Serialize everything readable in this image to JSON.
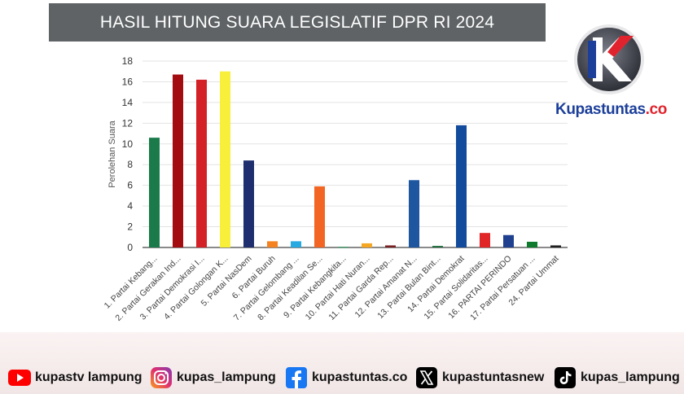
{
  "header": {
    "title": "HASIL HITUNG SUARA LEGISLATIF DPR RI 2024"
  },
  "brand": {
    "part1": "Kupastuntas",
    "part2": ".co"
  },
  "chart_data": {
    "type": "bar",
    "title": "HASIL HITUNG SUARA LEGISLATIF DPR RI 2024",
    "xlabel": "",
    "ylabel": "Perolehan Suara",
    "ylim": [
      0,
      18
    ],
    "yticks": [
      0,
      2,
      4,
      6,
      8,
      10,
      12,
      14,
      16,
      18
    ],
    "grid": true,
    "legend": "none",
    "categories": [
      "1. Partai Kebang...",
      "2. Partai Gerakan Ind...",
      "3. Partai Demokrasi I...",
      "4. Partai Golongan K...",
      "5. Partai NasDem",
      "6. Partai Buruh",
      "7. Partai Gelombang ...",
      "8. Partai Keadilan Se...",
      "9. Partai Kebangkita...",
      "10. Partai Hati Nuran...",
      "11. Partai Garda Rep...",
      "12. Partai Amanat N...",
      "13. Partai Bulan Bint...",
      "14. Partai Demokrat",
      "15. Partai Solidaritas...",
      "16. PARTAI PERINDO",
      "17. Partai Persatuan ...",
      "24. Partai Ummat"
    ],
    "values": [
      10.6,
      16.7,
      16.2,
      17.0,
      8.4,
      0.6,
      0.6,
      5.9,
      0.05,
      0.4,
      0.2,
      6.5,
      0.15,
      11.8,
      1.4,
      1.2,
      0.55,
      0.2
    ],
    "colors": [
      "#1a7a4a",
      "#a30d12",
      "#d42027",
      "#f8ef3a",
      "#1f2e6e",
      "#f58220",
      "#27a9e1",
      "#f26522",
      "#0a7c3e",
      "#f5a623",
      "#7a1f1f",
      "#1e56a0",
      "#1a6b3a",
      "#124b9c",
      "#e02626",
      "#1f3f8f",
      "#0d7a2e",
      "#1f1f1f"
    ]
  },
  "socials": [
    {
      "icon": "youtube-icon",
      "label": "kupastv lampung",
      "color": "#ff0000"
    },
    {
      "icon": "instagram-icon",
      "label": "kupas_lampung",
      "color": "#d6249f"
    },
    {
      "icon": "facebook-icon",
      "label": "kupastuntas.co",
      "color": "#1877f2"
    },
    {
      "icon": "x-icon",
      "label": "kupastuntasnew",
      "color": "#000000"
    },
    {
      "icon": "tiktok-icon",
      "label": "kupas_lampung",
      "color": "#000000"
    }
  ]
}
